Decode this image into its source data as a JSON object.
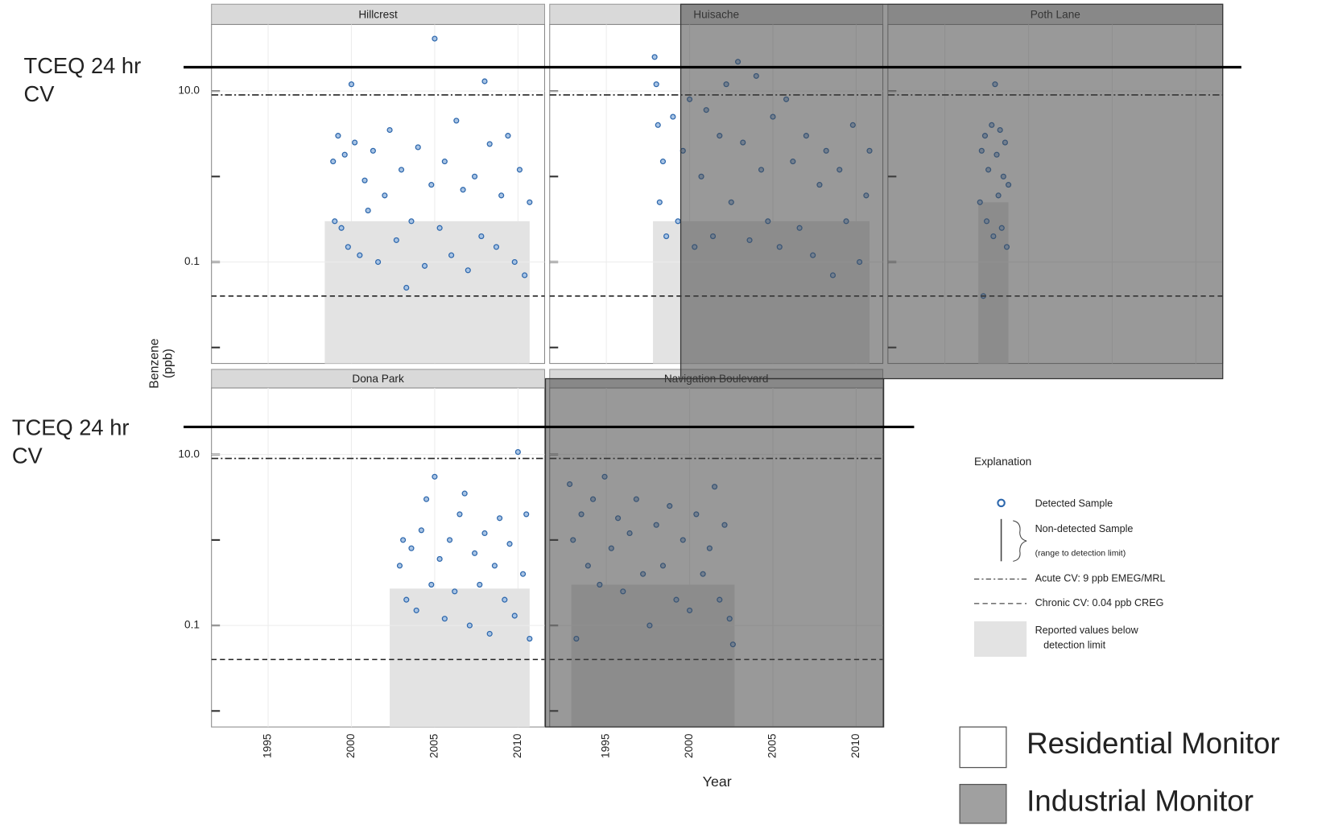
{
  "chart_data": [
    {
      "type": "scatter",
      "title": "Hillcrest",
      "color": "#2e68ad",
      "log_y": true,
      "grid": true,
      "xlim": [
        1991.6,
        2011.6
      ],
      "xticks": [
        1995,
        2000,
        2005,
        2010
      ],
      "ylim": [
        0.0065,
        60
      ],
      "yticks": [
        0.1,
        {
          "value": 10,
          "label": "10.0"
        }
      ],
      "minor_yticks": [
        0.01,
        1
      ],
      "acute_cv": 9,
      "chronic_cv": 0.04,
      "shade": {
        "x": [
          1998.4,
          2010.7
        ],
        "top": 0.3
      },
      "x": [
        1998.9,
        1999.0,
        1999.2,
        1999.4,
        1999.6,
        1999.8,
        2000.0,
        2000.2,
        2000.5,
        2000.8,
        2001.0,
        2001.3,
        2001.6,
        2002.0,
        2002.3,
        2002.7,
        2003.0,
        2003.3,
        2003.6,
        2004.0,
        2004.4,
        2004.8,
        2005.0,
        2005.3,
        2005.6,
        2006.0,
        2006.3,
        2006.7,
        2007.0,
        2007.4,
        2007.8,
        2008.0,
        2008.3,
        2008.7,
        2009.0,
        2009.4,
        2009.8,
        2010.1,
        2010.4,
        2010.7
      ],
      "values": [
        1.5,
        0.3,
        3.0,
        0.25,
        1.8,
        0.15,
        12,
        2.5,
        0.12,
        0.9,
        0.4,
        2.0,
        0.1,
        0.6,
        3.5,
        0.18,
        1.2,
        0.05,
        0.3,
        2.2,
        0.09,
        0.8,
        41,
        0.25,
        1.5,
        0.12,
        4.5,
        0.7,
        0.08,
        1.0,
        0.2,
        13,
        2.4,
        0.15,
        0.6,
        3.0,
        0.1,
        1.2,
        0.07,
        0.5
      ]
    },
    {
      "type": "scatter",
      "title": "Huisache",
      "color": "#2e68ad",
      "log_y": true,
      "grid": true,
      "xlim": [
        1991.6,
        2011.6
      ],
      "xticks": [
        1995,
        2000,
        2005,
        2010
      ],
      "ylim": [
        0.0065,
        60
      ],
      "yticks": [
        0.1,
        {
          "value": 10,
          "label": "10.0"
        }
      ],
      "minor_yticks": [
        0.01,
        1
      ],
      "acute_cv": 9,
      "chronic_cv": 0.04,
      "shade": {
        "x": [
          1997.8,
          2010.8
        ],
        "top": 0.3
      },
      "x": [
        1997.9,
        1998.0,
        1998.1,
        1998.2,
        1998.4,
        1998.6,
        1999.0,
        1999.3,
        1999.6,
        2000.0,
        2000.3,
        2000.7,
        2001.0,
        2001.4,
        2001.8,
        2002.2,
        2002.5,
        2002.9,
        2003.2,
        2003.6,
        2004.0,
        2004.3,
        2004.7,
        2005.0,
        2005.4,
        2005.8,
        2006.2,
        2006.6,
        2007.0,
        2007.4,
        2007.8,
        2008.2,
        2008.6,
        2009.0,
        2009.4,
        2009.8,
        2010.2,
        2010.6,
        2010.8
      ],
      "values": [
        25,
        12,
        4,
        0.5,
        1.5,
        0.2,
        5,
        0.3,
        2,
        8,
        0.15,
        1,
        6,
        0.2,
        3,
        12,
        0.5,
        22,
        2.5,
        0.18,
        15,
        1.2,
        0.3,
        5,
        0.15,
        8,
        1.5,
        0.25,
        3,
        0.12,
        0.8,
        2,
        0.07,
        1.2,
        0.3,
        4,
        0.1,
        0.6,
        2
      ]
    },
    {
      "type": "scatter",
      "title": "Poth Lane",
      "color": "#2e68ad",
      "log_y": true,
      "grid": true,
      "xlim": [
        1991.6,
        2011.6
      ],
      "xticks": [
        1995,
        2000,
        2005,
        2010
      ],
      "ylim": [
        0.0065,
        60
      ],
      "yticks": [
        0.1,
        {
          "value": 10,
          "label": "10.0"
        }
      ],
      "minor_yticks": [
        0.01,
        1
      ],
      "acute_cv": 9,
      "chronic_cv": 0.04,
      "shade": {
        "x": [
          1997.0,
          1998.8
        ],
        "top": 0.5
      },
      "x": [
        1997.1,
        1997.2,
        1997.3,
        1997.4,
        1997.5,
        1997.6,
        1997.8,
        1997.9,
        1998.0,
        1998.1,
        1998.2,
        1998.3,
        1998.4,
        1998.5,
        1998.6,
        1998.7,
        1998.8
      ],
      "values": [
        0.5,
        2,
        0.04,
        3,
        0.3,
        1.2,
        4,
        0.2,
        12,
        1.8,
        0.6,
        3.5,
        0.25,
        1,
        2.5,
        0.15,
        0.8
      ]
    },
    {
      "type": "scatter",
      "title": "Dona Park",
      "color": "#2e68ad",
      "log_y": true,
      "grid": true,
      "xlim": [
        1991.6,
        2011.6
      ],
      "xticks": [
        1995,
        2000,
        2005,
        2010
      ],
      "ylim": [
        0.0065,
        60
      ],
      "yticks": [
        0.1,
        {
          "value": 10,
          "label": "10.0"
        }
      ],
      "minor_yticks": [
        0.01,
        1
      ],
      "acute_cv": 9,
      "chronic_cv": 0.04,
      "shade": {
        "x": [
          2002.3,
          2010.7
        ],
        "top": 0.27
      },
      "x": [
        2002.9,
        2003.1,
        2003.3,
        2003.6,
        2003.9,
        2004.2,
        2004.5,
        2004.8,
        2005.0,
        2005.3,
        2005.6,
        2005.9,
        2006.2,
        2006.5,
        2006.8,
        2007.1,
        2007.4,
        2007.7,
        2008.0,
        2008.3,
        2008.6,
        2008.9,
        2009.2,
        2009.5,
        2009.8,
        2010.0,
        2010.3,
        2010.5,
        2010.7
      ],
      "values": [
        0.5,
        1,
        0.2,
        0.8,
        0.15,
        1.3,
        3,
        0.3,
        5.5,
        0.6,
        0.12,
        1,
        0.25,
        2,
        3.5,
        0.1,
        0.7,
        0.3,
        1.2,
        0.08,
        0.5,
        1.8,
        0.2,
        0.9,
        0.13,
        10.7,
        0.4,
        2,
        0.07
      ]
    },
    {
      "type": "scatter",
      "title": "Navigation Boulevard",
      "color": "#2e68ad",
      "log_y": true,
      "grid": true,
      "xlim": [
        1991.6,
        2011.6
      ],
      "xticks": [
        1995,
        2000,
        2005,
        2010
      ],
      "ylim": [
        0.0065,
        60
      ],
      "yticks": [
        0.1,
        {
          "value": 10,
          "label": "10.0"
        }
      ],
      "minor_yticks": [
        0.01,
        1
      ],
      "acute_cv": 9,
      "chronic_cv": 0.04,
      "shade": {
        "x": [
          1992.9,
          2002.7
        ],
        "top": 0.3
      },
      "x": [
        1992.8,
        1993.0,
        1993.2,
        1993.5,
        1993.9,
        1994.2,
        1994.6,
        1994.9,
        1995.3,
        1995.7,
        1996.0,
        1996.4,
        1996.8,
        1997.2,
        1997.6,
        1998.0,
        1998.4,
        1998.8,
        1999.2,
        1999.6,
        2000.0,
        2000.4,
        2000.8,
        2001.2,
        2001.5,
        2001.8,
        2002.1,
        2002.4,
        2002.6
      ],
      "values": [
        4.5,
        1,
        0.07,
        2,
        0.5,
        3,
        0.3,
        5.5,
        0.8,
        1.8,
        0.25,
        1.2,
        3,
        0.4,
        0.1,
        1.5,
        0.5,
        2.5,
        0.2,
        1,
        0.15,
        2,
        0.4,
        0.8,
        4.2,
        0.2,
        1.5,
        0.12,
        0.06
      ]
    }
  ],
  "axes": {
    "y_label": [
      "Benzene",
      "(ppb)"
    ],
    "x_label": "Year"
  },
  "annotations": [
    {
      "lines": [
        "TCEQ 24 hr",
        "CV"
      ],
      "level": 19
    },
    {
      "lines": [
        "TCEQ 24 hr",
        "CV"
      ],
      "level": 21
    }
  ],
  "legend": {
    "title": "Explanation",
    "items": [
      "Detected Sample",
      "Non-detected Sample",
      "(range to detection limit)",
      "Acute CV: 9 ppb EMEG/MRL",
      "Chronic CV: 0.04 ppb CREG",
      "Reported values below",
      "detection limit"
    ]
  },
  "monitor_key": [
    "Residential Monitor",
    "Industrial Monitor"
  ]
}
